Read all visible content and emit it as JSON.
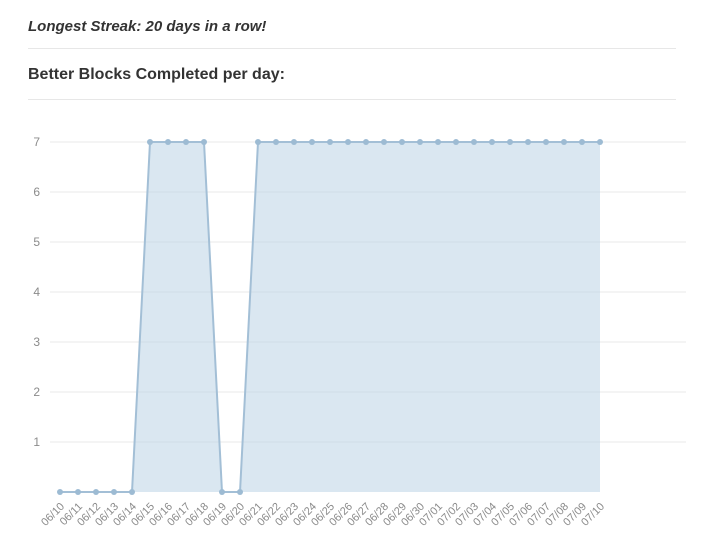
{
  "page": {
    "streak_title": "Longest Streak: 20 days in a row!",
    "chart_title": "Better Blocks Completed per day:"
  },
  "chart_data": {
    "type": "area",
    "title": "Better Blocks Completed per day:",
    "x": [
      "06/10",
      "06/11",
      "06/12",
      "06/13",
      "06/14",
      "06/15",
      "06/16",
      "06/17",
      "06/18",
      "06/19",
      "06/20",
      "06/21",
      "06/22",
      "06/23",
      "06/24",
      "06/25",
      "06/26",
      "06/27",
      "06/28",
      "06/29",
      "06/30",
      "07/01",
      "07/02",
      "07/03",
      "07/04",
      "07/05",
      "07/06",
      "07/07",
      "07/08",
      "07/09",
      "07/10"
    ],
    "values": [
      0,
      0,
      0,
      0,
      0,
      7,
      7,
      7,
      7,
      0,
      0,
      7,
      7,
      7,
      7,
      7,
      7,
      7,
      7,
      7,
      7,
      7,
      7,
      7,
      7,
      7,
      7,
      7,
      7,
      7,
      7
    ],
    "xlabel": "",
    "ylabel": "",
    "ylim": [
      0,
      7.4
    ],
    "yticks": [
      1,
      2,
      3,
      4,
      5,
      6,
      7
    ],
    "grid": "horizontal",
    "legend": "none",
    "colors": {
      "fill": "#bcd4e6",
      "fill_opacity": "0.55",
      "line": "#a3bfd6",
      "point": "#9dbbd3",
      "grid": "#e8e8e8",
      "tick_label": "#8b8b8b"
    }
  }
}
